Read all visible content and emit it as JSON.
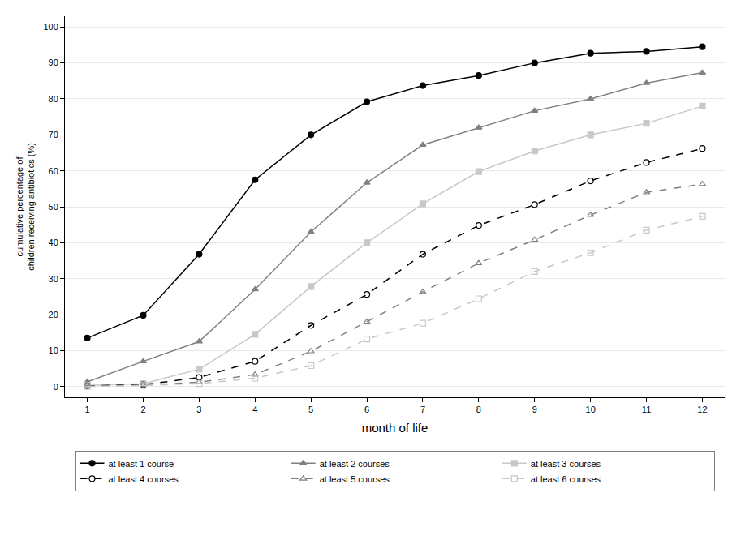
{
  "chart_data": {
    "type": "line",
    "x_label": "month of life",
    "y_label": "cumulative percentage of\nchildren receiving antibiotics (%)",
    "x": [
      1,
      2,
      3,
      4,
      5,
      6,
      7,
      8,
      9,
      10,
      11,
      12
    ],
    "xlim": [
      0.6,
      12.4
    ],
    "xticks": [
      1,
      2,
      3,
      4,
      5,
      6,
      7,
      8,
      9,
      10,
      11,
      12
    ],
    "ylim": [
      -3,
      103
    ],
    "yticks": [
      0,
      10,
      20,
      30,
      40,
      50,
      60,
      70,
      80,
      90,
      100
    ],
    "grid": true,
    "legend": "bottom",
    "series": [
      {
        "name": "at least 1 course",
        "color": "#000000",
        "marker": "circle",
        "line_style": "solid",
        "values": [
          13.5,
          19.8,
          36.8,
          57.5,
          70,
          79.2,
          83.7,
          86.5,
          90,
          92.7,
          93.2,
          94.5
        ]
      },
      {
        "name": "at least 2 courses",
        "color": "#808080",
        "marker": "triangle-up",
        "line_style": "solid",
        "values": [
          1.3,
          7,
          12.5,
          27,
          43,
          56.7,
          67.2,
          72,
          76.7,
          80,
          84.4,
          87.3
        ]
      },
      {
        "name": "at least 3 courses",
        "color": "#c8c8c8",
        "marker": "square",
        "line_style": "solid",
        "values": [
          0.3,
          0.8,
          4.8,
          14.5,
          27.8,
          40,
          50.8,
          59.8,
          65.5,
          70,
          73.2,
          78
        ]
      },
      {
        "name": "at least 4 courses",
        "color": "#000000",
        "marker": "circle-open",
        "line_style": "dash",
        "values": [
          0.2,
          0.5,
          2.5,
          7,
          17,
          25.6,
          36.8,
          44.8,
          50.6,
          57.2,
          62.3,
          66.2
        ]
      },
      {
        "name": "at least 5 courses",
        "color": "#808080",
        "marker": "triangle-up-open",
        "line_style": "dash",
        "values": [
          0.1,
          0.4,
          1.2,
          3.3,
          9.8,
          18,
          26.3,
          34.3,
          40.8,
          47.7,
          54,
          56.3
        ]
      },
      {
        "name": "at least 6 courses",
        "color": "#c8c8c8",
        "marker": "square-open",
        "line_style": "dash",
        "values": [
          0,
          0.3,
          0.8,
          2.3,
          5.8,
          13.2,
          17.6,
          24.4,
          32,
          37.2,
          43.5,
          47.3
        ]
      }
    ]
  }
}
